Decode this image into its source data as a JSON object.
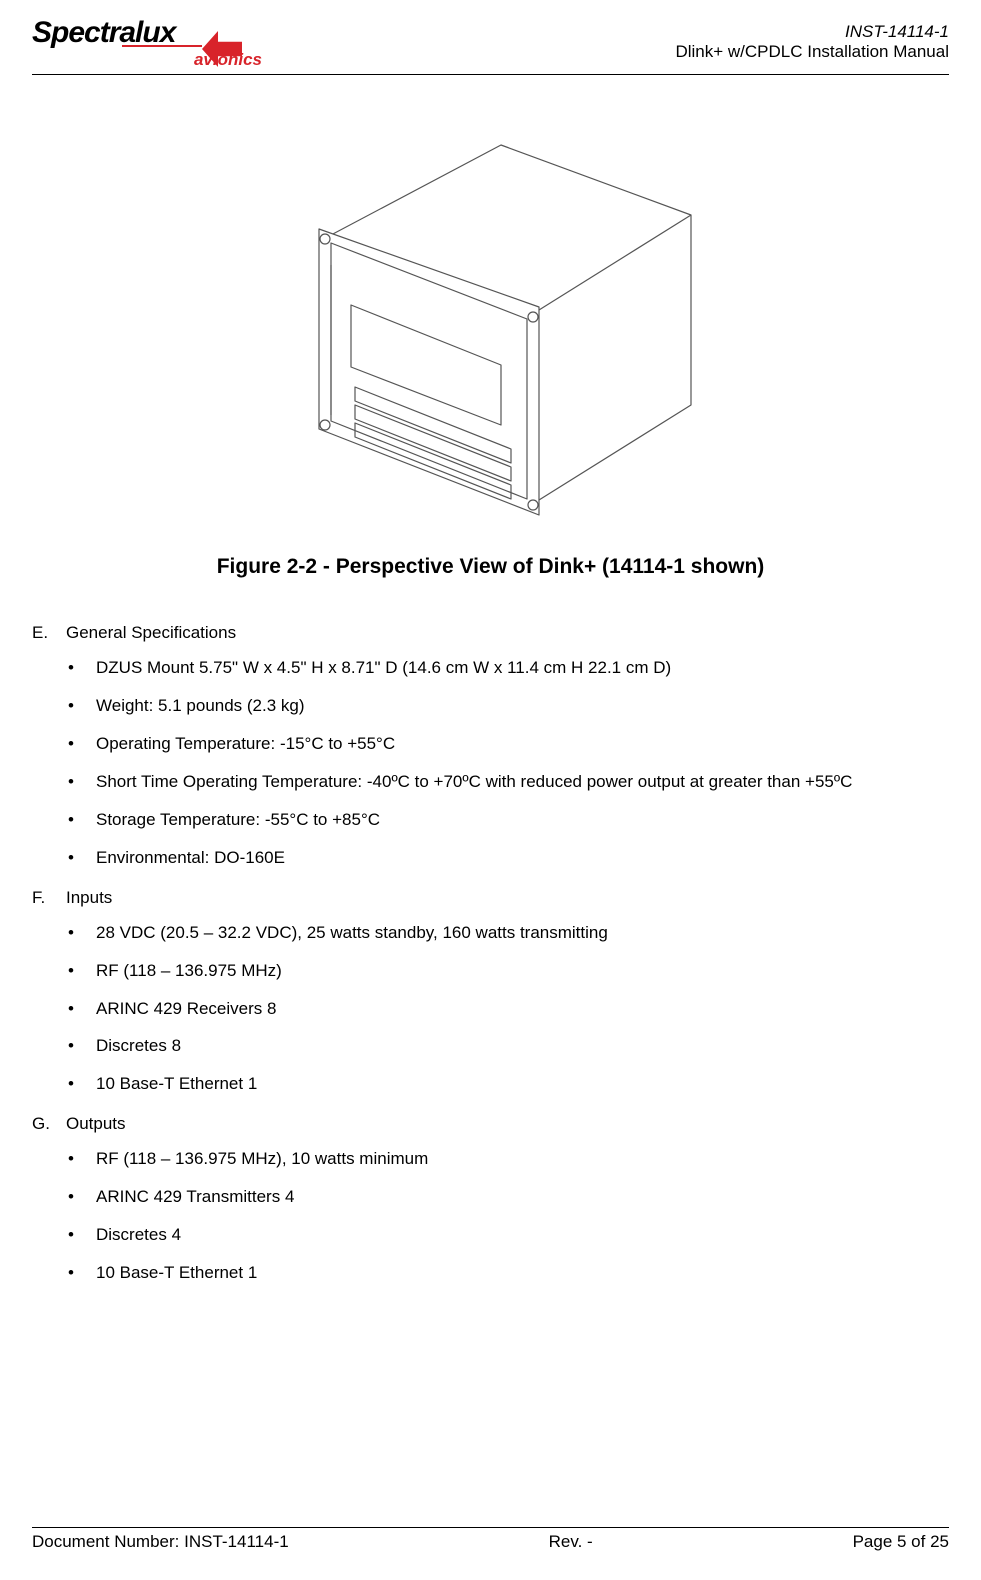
{
  "header": {
    "logo_main": "Spectralux",
    "logo_sub": "avionics",
    "doc_id": "INST-14114-1",
    "doc_title": "Dlink+ w/CPDLC Installation Manual",
    "logo_accent_color": "#d8232a"
  },
  "figure": {
    "caption": "Figure 2-2  - Perspective View of Dink+ (14114-1 shown)",
    "stroke_color": "#555555",
    "fill_color": "#ffffff"
  },
  "sections": [
    {
      "letter": "E.",
      "title": "General Specifications",
      "items": [
        "DZUS Mount 5.75\" W x 4.5\" H x 8.71\" D  (14.6 cm W x 11.4 cm H 22.1 cm D)",
        "Weight: 5.1 pounds (2.3 kg)",
        "Operating Temperature: -15°C to +55°C",
        "Short Time Operating Temperature: -40ºC to +70ºC with reduced power output at greater than +55ºC",
        "Storage Temperature: -55°C to +85°C",
        "Environmental: DO-160E"
      ]
    },
    {
      "letter": "F.",
      "title": "Inputs",
      "items": [
        "28 VDC (20.5 – 32.2 VDC), 25 watts standby, 160 watts transmitting",
        "RF (118 – 136.975 MHz)",
        "ARINC 429 Receivers 8",
        "Discretes 8",
        "10 Base-T Ethernet 1"
      ]
    },
    {
      "letter": "G.",
      "title": "Outputs",
      "items": [
        "RF (118 – 136.975 MHz), 10 watts minimum",
        "ARINC 429 Transmitters 4",
        "Discretes 4",
        "10 Base-T Ethernet 1"
      ]
    }
  ],
  "footer": {
    "left": "Document Number:  INST-14114-1",
    "center": "Rev. -",
    "right": "Page 5 of 25"
  },
  "typography": {
    "body_fontsize_pt": 12,
    "caption_fontsize_pt": 15,
    "caption_fontweight": "bold",
    "text_color": "#000000",
    "background_color": "#ffffff"
  }
}
